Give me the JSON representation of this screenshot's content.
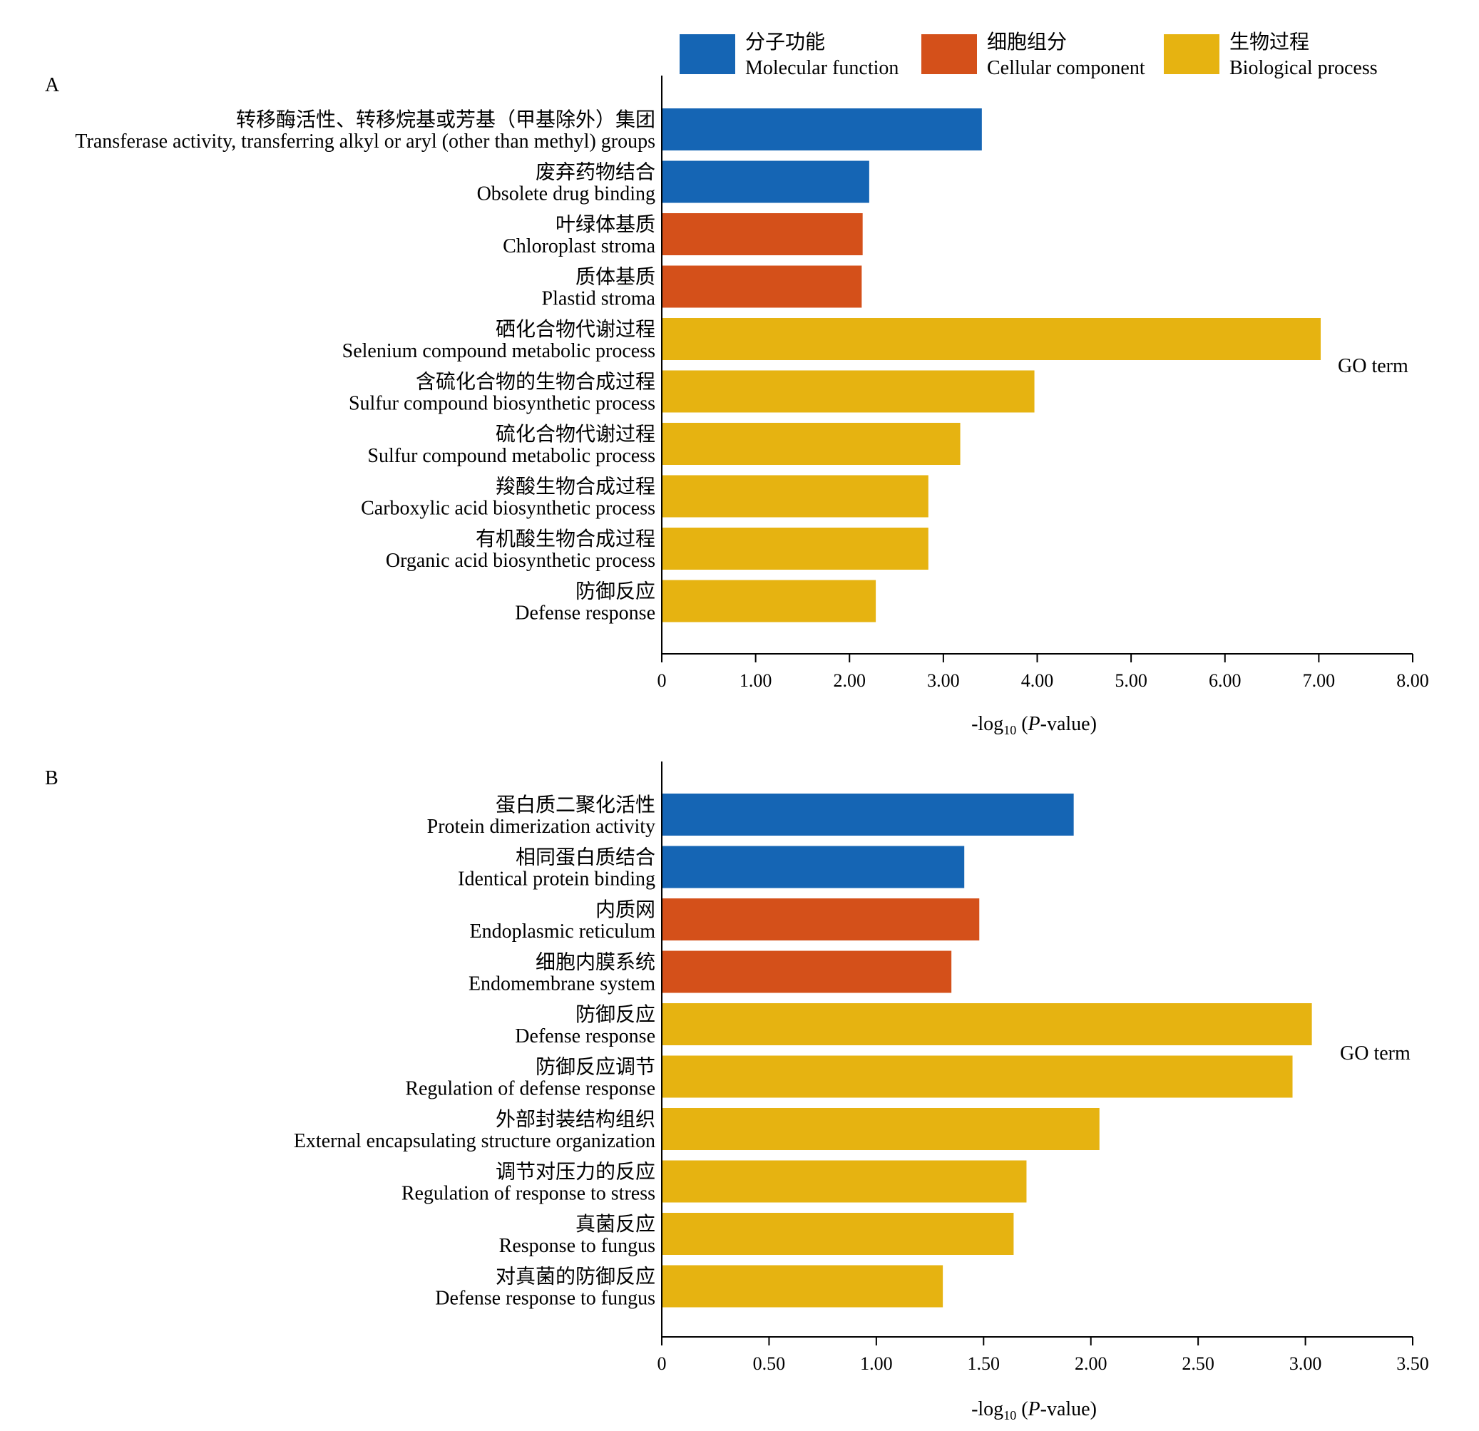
{
  "legend": [
    {
      "cn": "分子功能",
      "en": "Molecular function",
      "color": "#1565b4"
    },
    {
      "cn": "细胞组分",
      "en": "Cellular component",
      "color": "#d4501a"
    },
    {
      "cn": "生物过程",
      "en": "Biological process",
      "color": "#e6b311"
    }
  ],
  "chart_data": [
    {
      "type": "bar",
      "orientation": "horizontal",
      "panel_label": "A",
      "side_label": "GO term",
      "xlabel_prefix": "-log",
      "xlabel_sub": "10",
      "xlabel_open": " (",
      "xlabel_italic": "P",
      "xlabel_suffix": "-value)",
      "xlim": [
        0,
        8
      ],
      "xticks": [
        "0",
        "1.00",
        "2.00",
        "3.00",
        "4.00",
        "5.00",
        "6.00",
        "7.00",
        "8.00"
      ],
      "grid": false,
      "categories": [
        {
          "cn": "转移酶活性、转移烷基或芳基（甲基除外）集团",
          "en": "Transferase activity, transferring alkyl or aryl (other than methyl) groups",
          "group": "Molecular function",
          "value": 3.41
        },
        {
          "cn": "废弃药物结合",
          "en": "Obsolete drug binding",
          "group": "Molecular function",
          "value": 2.21
        },
        {
          "cn": "叶绿体基质",
          "en": "Chloroplast stroma",
          "group": "Cellular component",
          "value": 2.14
        },
        {
          "cn": "质体基质",
          "en": "Plastid stroma",
          "group": "Cellular component",
          "value": 2.13
        },
        {
          "cn": "硒化合物代谢过程",
          "en": "Selenium compound metabolic process",
          "group": "Biological process",
          "value": 7.02
        },
        {
          "cn": "含硫化合物的生物合成过程",
          "en": "Sulfur compound biosynthetic process",
          "group": "Biological process",
          "value": 3.97
        },
        {
          "cn": "硫化合物代谢过程",
          "en": "Sulfur compound metabolic process",
          "group": "Biological process",
          "value": 3.18
        },
        {
          "cn": "羧酸生物合成过程",
          "en": "Carboxylic acid biosynthetic process",
          "group": "Biological process",
          "value": 2.84
        },
        {
          "cn": "有机酸生物合成过程",
          "en": "Organic acid biosynthetic process",
          "group": "Biological process",
          "value": 2.84
        },
        {
          "cn": "防御反应",
          "en": "Defense response",
          "group": "Biological process",
          "value": 2.28
        }
      ]
    },
    {
      "type": "bar",
      "orientation": "horizontal",
      "panel_label": "B",
      "side_label": "GO term",
      "xlabel_prefix": "-log",
      "xlabel_sub": "10",
      "xlabel_open": " (",
      "xlabel_italic": "P",
      "xlabel_suffix": "-value)",
      "xlim": [
        0,
        3.5
      ],
      "xticks": [
        "0",
        "0.50",
        "1.00",
        "1.50",
        "2.00",
        "2.50",
        "3.00",
        "3.50"
      ],
      "grid": false,
      "categories": [
        {
          "cn": "蛋白质二聚化活性",
          "en": "Protein dimerization activity",
          "group": "Molecular function",
          "value": 1.92
        },
        {
          "cn": "相同蛋白质结合",
          "en": "Identical protein binding",
          "group": "Molecular function",
          "value": 1.41
        },
        {
          "cn": "内质网",
          "en": "Endoplasmic reticulum",
          "group": "Cellular component",
          "value": 1.48
        },
        {
          "cn": "细胞内膜系统",
          "en": "Endomembrane system",
          "group": "Cellular component",
          "value": 1.35
        },
        {
          "cn": "防御反应",
          "en": "Defense response",
          "group": "Biological process",
          "value": 3.03
        },
        {
          "cn": "防御反应调节",
          "en": "Regulation of defense response",
          "group": "Biological process",
          "value": 2.94
        },
        {
          "cn": "外部封装结构组织",
          "en": "External encapsulating structure organization",
          "group": "Biological process",
          "value": 2.04
        },
        {
          "cn": "调节对压力的反应",
          "en": "Regulation of response to stress",
          "group": "Biological process",
          "value": 1.7
        },
        {
          "cn": "真菌反应",
          "en": "Response to fungus",
          "group": "Biological process",
          "value": 1.64
        },
        {
          "cn": "对真菌的防御反应",
          "en": "Defense response to fungus",
          "group": "Biological process",
          "value": 1.31
        }
      ]
    }
  ]
}
